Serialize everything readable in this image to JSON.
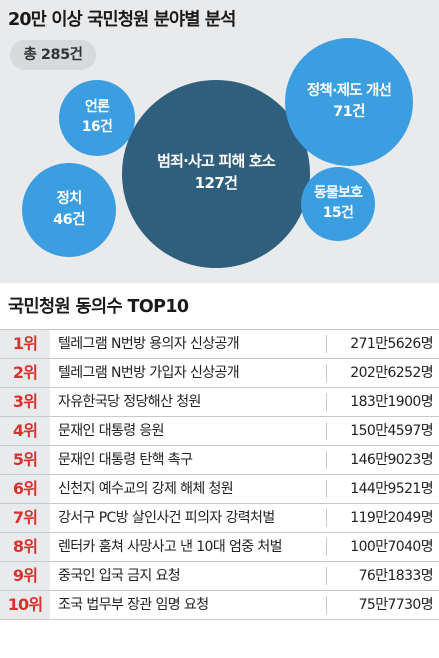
{
  "chart_data": [
    {
      "type": "bubble",
      "title": "20만 이상 국민청원 분야별 분석",
      "total_label": "총 285건",
      "items": [
        {
          "label": "범죄·사고 피해 호소",
          "value_label": "127건",
          "value": 127
        },
        {
          "label": "정책·제도 개선",
          "value_label": "71건",
          "value": 71
        },
        {
          "label": "정치",
          "value_label": "46건",
          "value": 46
        },
        {
          "label": "언론",
          "value_label": "16건",
          "value": 16
        },
        {
          "label": "동물보호",
          "value_label": "15건",
          "value": 15
        }
      ]
    },
    {
      "type": "table",
      "title": "국민청원 동의수 TOP10",
      "rows": [
        {
          "rank": "1위",
          "name": "텔레그램 N번방 용의자 신상공개",
          "count": "271만5626명"
        },
        {
          "rank": "2위",
          "name": "텔레그램 N번방 가입자 신상공개",
          "count": "202만6252명"
        },
        {
          "rank": "3위",
          "name": "자유한국당 정당해산 청원",
          "count": "183만1900명"
        },
        {
          "rank": "4위",
          "name": "문재인 대통령 응원",
          "count": "150만4597명"
        },
        {
          "rank": "5위",
          "name": "문재인 대통령 탄핵 촉구",
          "count": "146만9023명"
        },
        {
          "rank": "6위",
          "name": "신천지 예수교의 강제 해체 청원",
          "count": "144만9521명"
        },
        {
          "rank": "7위",
          "name": "강서구 PC방 살인사건 피의자 강력처벌",
          "count": "119만2049명"
        },
        {
          "rank": "8위",
          "name": "렌터카 훔쳐 사망사고 낸 10대 엄중 처벌",
          "count": "100만7040명"
        },
        {
          "rank": "9위",
          "name": "중국인 입국 금지 요청",
          "count": "76만1833명"
        },
        {
          "rank": "10위",
          "name": "조국 법무부 장관 임명 요청",
          "count": "75만7730명"
        }
      ]
    }
  ],
  "colors": {
    "bubble_dark": "#2f5f7c",
    "bubble_light": "#3b9ee0",
    "background_top": "#e9eaec",
    "rank_bg": "#e8eaec",
    "rank_text": "#d9322e"
  }
}
